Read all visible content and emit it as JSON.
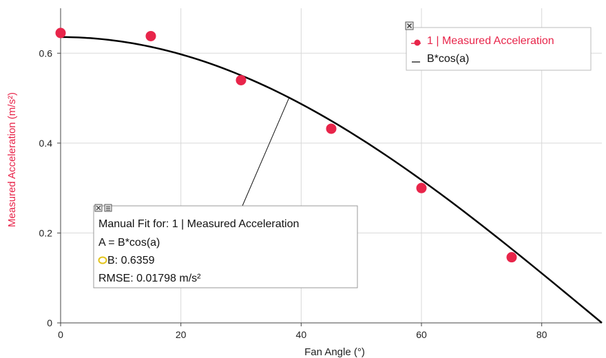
{
  "chart_data": {
    "type": "scatter",
    "xlabel": "Fan Angle (°)",
    "ylabel": "Measured Acceleration (m/s²)",
    "xlim": [
      0,
      90
    ],
    "ylim": [
      0,
      0.7
    ],
    "x_ticks": [
      0,
      20,
      40,
      60,
      80
    ],
    "y_ticks": [
      0,
      0.2,
      0.4,
      0.6
    ],
    "x_tick_labels": [
      "0",
      "20",
      "40",
      "60",
      "80"
    ],
    "y_tick_labels": [
      "0",
      "0.2",
      "0.4",
      "0.6"
    ],
    "grid": true,
    "legend_placement": "top-right",
    "series": [
      {
        "name": "1 | Measured Acceleration",
        "kind": "points",
        "color": "#e8254a",
        "x": [
          0,
          15,
          30,
          45,
          60,
          75
        ],
        "y": [
          0.645,
          0.638,
          0.54,
          0.432,
          0.3,
          0.146
        ]
      },
      {
        "name": "B*cos(a)",
        "kind": "curve",
        "color": "#000000",
        "formula": "B*cos(a)",
        "B": 0.6359
      }
    ],
    "fit_box": {
      "title": "Manual Fit for: 1 | Measured Acceleration",
      "equation": "A = B*cos(a)",
      "param": "B: 0.6359",
      "rmse": "RMSE: 0.01798 m/s²",
      "pointer_x": 38
    }
  }
}
